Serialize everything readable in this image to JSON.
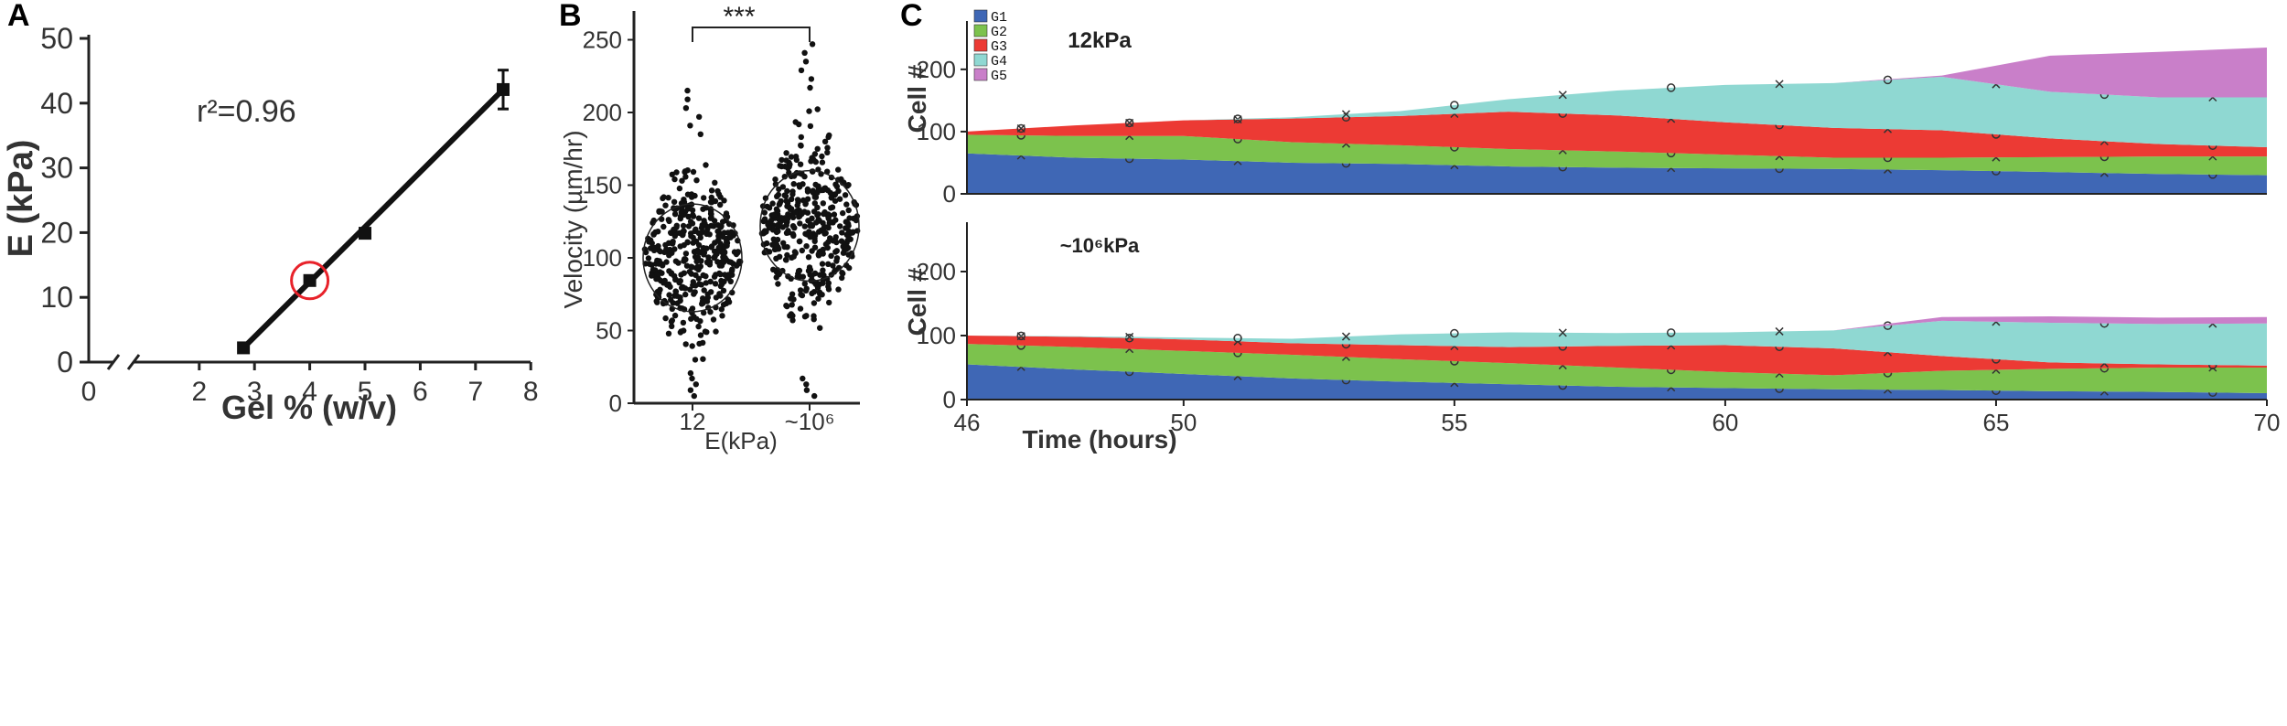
{
  "panels": {
    "a": "A",
    "b": "B",
    "c": "C"
  },
  "chart_data": [
    {
      "type": "scatter",
      "panel": "A",
      "xlabel": "Gel % (w/v)",
      "ylabel": "E (kPa)",
      "annotation": "r²=0.96",
      "xticks": [
        "0",
        "2",
        "3",
        "4",
        "5",
        "6",
        "7",
        "8"
      ],
      "yticks": [
        "0",
        "10",
        "20",
        "30",
        "40",
        "50"
      ],
      "xlim": [
        0,
        8
      ],
      "ylim": [
        0,
        50
      ],
      "axis_break": true,
      "points": [
        {
          "x": 2.8,
          "y": 2.2,
          "err": 0.3
        },
        {
          "x": 4.0,
          "y": 12.6,
          "err": 0.5
        },
        {
          "x": 5.0,
          "y": 19.9,
          "err": 0.8
        },
        {
          "x": 7.5,
          "y": 42.1,
          "err": 3.0
        }
      ],
      "fit_line": {
        "x": [
          2.8,
          7.5
        ],
        "y": [
          2.2,
          42.1
        ]
      },
      "highlight": {
        "x": 4.0,
        "y": 12.6,
        "color": "#e8222a"
      }
    },
    {
      "type": "scatter",
      "panel": "B",
      "ylabel": "Velocity (µm/hr)",
      "xlabel": "E(kPa)",
      "categories": [
        "12",
        "~10⁶"
      ],
      "yticks": [
        "0",
        "50",
        "100",
        "150",
        "200",
        "250"
      ],
      "ylim": [
        0,
        270
      ],
      "significance": "***",
      "groups": [
        {
          "name": "12",
          "mean": 100,
          "sd": 38,
          "min": 5,
          "max": 215,
          "ellipse_y": [
            63,
            137
          ],
          "n": 420
        },
        {
          "name": "~10⁶",
          "mean": 122,
          "sd": 40,
          "min": 5,
          "max": 247,
          "ellipse_y": [
            84,
            160
          ],
          "n": 420
        }
      ]
    },
    {
      "type": "area",
      "panel": "C",
      "title": "12kPa",
      "ylabel": "Cell #",
      "xlabel": "",
      "xlim": [
        46,
        70
      ],
      "ylim": [
        0,
        260
      ],
      "yticks": [
        "0",
        "100",
        "200"
      ],
      "legend": [
        "G1",
        "G2",
        "G3",
        "G4",
        "G5"
      ],
      "legend_position": "top-left",
      "colors": [
        "#3f67b5",
        "#7cc24d",
        "#ec3a34",
        "#8fd8d2",
        "#c97fc9"
      ],
      "x": [
        46,
        48,
        50,
        52,
        54,
        56,
        58,
        60,
        62,
        64,
        66,
        68,
        70
      ],
      "series": [
        {
          "name": "G1",
          "values": [
            65,
            58,
            55,
            50,
            48,
            44,
            42,
            41,
            40,
            38,
            35,
            32,
            30
          ]
        },
        {
          "name": "G2",
          "values": [
            30,
            35,
            38,
            33,
            30,
            28,
            26,
            22,
            18,
            20,
            24,
            28,
            30
          ]
        },
        {
          "name": "G3",
          "values": [
            5,
            17,
            25,
            38,
            47,
            60,
            58,
            52,
            48,
            44,
            30,
            20,
            15
          ]
        },
        {
          "name": "G4",
          "values": [
            0,
            0,
            0,
            2,
            8,
            20,
            40,
            60,
            72,
            86,
            75,
            75,
            80
          ]
        },
        {
          "name": "G5",
          "values": [
            0,
            0,
            0,
            0,
            0,
            0,
            0,
            0,
            0,
            2,
            58,
            73,
            80
          ]
        }
      ]
    },
    {
      "type": "area",
      "panel": "C",
      "title": "~10⁶kPa",
      "ylabel": "Cell #",
      "xlabel": "Time (hours)",
      "xlim": [
        46,
        70
      ],
      "ylim": [
        0,
        260
      ],
      "xticks": [
        "46",
        "50",
        "55",
        "60",
        "65",
        "70"
      ],
      "yticks": [
        "0",
        "100",
        "200"
      ],
      "colors": [
        "#3f67b5",
        "#7cc24d",
        "#ec3a34",
        "#8fd8d2",
        "#c97fc9"
      ],
      "x": [
        46,
        48,
        50,
        52,
        54,
        56,
        58,
        60,
        62,
        64,
        66,
        68,
        70
      ],
      "series": [
        {
          "name": "G1",
          "values": [
            55,
            47,
            40,
            33,
            28,
            24,
            20,
            18,
            16,
            15,
            13,
            12,
            10
          ]
        },
        {
          "name": "G2",
          "values": [
            32,
            35,
            36,
            37,
            35,
            33,
            30,
            25,
            22,
            30,
            35,
            38,
            40
          ]
        },
        {
          "name": "G3",
          "values": [
            13,
            16,
            18,
            18,
            22,
            25,
            34,
            42,
            42,
            23,
            10,
            5,
            3
          ]
        },
        {
          "name": "G4",
          "values": [
            0,
            1,
            3,
            7,
            17,
            23,
            20,
            20,
            28,
            55,
            62,
            63,
            66
          ]
        },
        {
          "name": "G5",
          "values": [
            0,
            0,
            0,
            0,
            0,
            0,
            0,
            0,
            0,
            6,
            10,
            10,
            10
          ]
        }
      ]
    }
  ]
}
